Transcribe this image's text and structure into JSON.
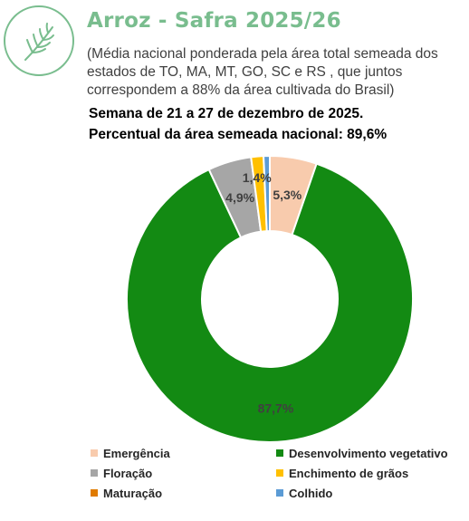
{
  "header": {
    "title": "Arroz - Safra 2025/26",
    "subtitle": "(Média nacional ponderada pela área total semeada dos estados de TO, MA, MT, GO, SC e RS , que juntos correspondem a 88% da área cultivada do Brasil)",
    "week": "Semana de 21 a 27 de dezembro de 2025.",
    "percent_sown": "Percentual da área semeada nacional: 89,6%"
  },
  "colors": {
    "brand": "#79bd8e"
  },
  "chart_data": {
    "type": "pie",
    "style": "donut",
    "legend_position": "bottom",
    "categories": [
      "Emergência",
      "Desenvolvimento vegetativo",
      "Floração",
      "Enchimento de grãos",
      "Maturação",
      "Colhido"
    ],
    "values": [
      5.3,
      87.7,
      4.9,
      1.4,
      0.0,
      0.7
    ],
    "data_labels": [
      "5,3%",
      "87,7%",
      "4,9%",
      "1,4%",
      "",
      ""
    ],
    "colors": [
      "#f8cbad",
      "#138a13",
      "#a6a6a6",
      "#ffc000",
      "#e07b00",
      "#5b9bd5"
    ]
  }
}
